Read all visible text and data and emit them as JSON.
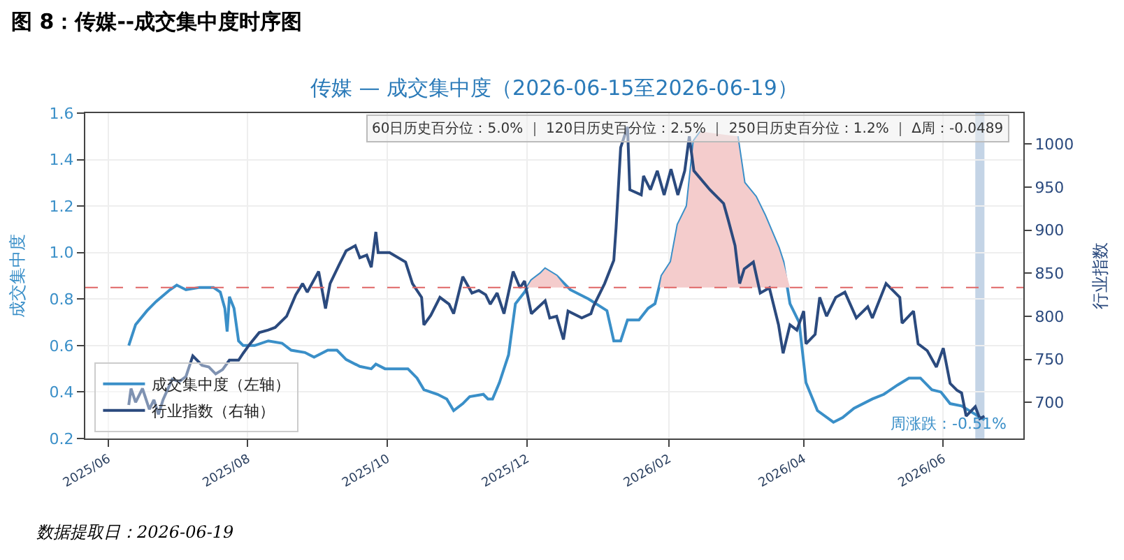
{
  "chart_data": {
    "type": "line",
    "title": "图 8：传媒--成交集中度时序图",
    "subtitle": "传媒 — 成交集中度（2026-06-15至2026-06-19）",
    "ylabel": "成交集中度",
    "y2label": "行业指数",
    "series": [
      {
        "name": "成交集中度（左轴）",
        "color": "#3a8fc8",
        "x": [
          "2025-06-10",
          "2025-06-13",
          "2025-06-18",
          "2025-06-22",
          "2025-06-28",
          "2025-07-01",
          "2025-07-05",
          "2025-07-11",
          "2025-07-17",
          "2025-07-20",
          "2025-07-22",
          "2025-07-23",
          "2025-07-24",
          "2025-07-26",
          "2025-07-28",
          "2025-07-30",
          "2025-08-04",
          "2025-08-10",
          "2025-08-16",
          "2025-08-20",
          "2025-08-26",
          "2025-08-30",
          "2025-09-05",
          "2025-09-09",
          "2025-09-13",
          "2025-09-19",
          "2025-09-24",
          "2025-09-26",
          "2025-09-30",
          "2025-10-10",
          "2025-10-14",
          "2025-10-17",
          "2025-10-23",
          "2025-10-27",
          "2025-10-30",
          "2025-11-03",
          "2025-11-06",
          "2025-11-12",
          "2025-11-14",
          "2025-11-16",
          "2025-11-19",
          "2025-11-23",
          "2025-11-26",
          "2025-11-30",
          "2025-12-03",
          "2025-12-07",
          "2025-12-09",
          "2025-12-14",
          "2025-12-20",
          "2025-12-28",
          "2026-01-05",
          "2026-01-08",
          "2026-01-11",
          "2026-01-14",
          "2026-01-19",
          "2026-01-23",
          "2026-01-26",
          "2026-01-29",
          "2026-02-02",
          "2026-02-05",
          "2026-02-09",
          "2026-02-12",
          "2026-02-15",
          "2026-02-23",
          "2026-03-03",
          "2026-03-06",
          "2026-03-11",
          "2026-03-15",
          "2026-03-21",
          "2026-03-23",
          "2026-03-26",
          "2026-03-30",
          "2026-04-02",
          "2026-04-07",
          "2026-04-14",
          "2026-04-18",
          "2026-04-23",
          "2026-05-01",
          "2026-05-06",
          "2026-05-12",
          "2026-05-17",
          "2026-05-22",
          "2026-05-27",
          "2026-05-31",
          "2026-06-04",
          "2026-06-09",
          "2026-06-14",
          "2026-06-19"
        ],
        "values": [
          0.6,
          0.69,
          0.75,
          0.79,
          0.84,
          0.86,
          0.84,
          0.85,
          0.85,
          0.83,
          0.76,
          0.66,
          0.81,
          0.76,
          0.62,
          0.6,
          0.6,
          0.62,
          0.61,
          0.58,
          0.57,
          0.55,
          0.58,
          0.58,
          0.54,
          0.51,
          0.5,
          0.52,
          0.5,
          0.5,
          0.46,
          0.41,
          0.39,
          0.37,
          0.32,
          0.35,
          0.38,
          0.39,
          0.37,
          0.37,
          0.44,
          0.56,
          0.78,
          0.83,
          0.88,
          0.91,
          0.93,
          0.9,
          0.84,
          0.8,
          0.75,
          0.62,
          0.62,
          0.71,
          0.71,
          0.76,
          0.78,
          0.9,
          0.96,
          1.12,
          1.2,
          1.48,
          1.52,
          null,
          1.5,
          1.3,
          1.24,
          1.16,
          1.02,
          0.96,
          0.78,
          0.7,
          0.44,
          0.32,
          0.27,
          0.29,
          0.33,
          0.37,
          0.39,
          0.43,
          0.46,
          0.46,
          0.41,
          0.4,
          0.35,
          0.34,
          0.31,
          0.28
        ]
      },
      {
        "name": "行业指数（右轴）",
        "color": "#2b4a7e",
        "axis": "y2",
        "x": [
          "2025-06-10",
          "2025-06-11",
          "2025-06-13",
          "2025-06-16",
          "2025-06-19",
          "2025-06-21",
          "2025-06-23",
          "2025-06-25",
          "2025-06-29",
          "2025-07-02",
          "2025-07-05",
          "2025-07-08",
          "2025-07-12",
          "2025-07-15",
          "2025-07-18",
          "2025-07-21",
          "2025-07-24",
          "2025-07-28",
          "2025-07-30",
          "2025-08-02",
          "2025-08-06",
          "2025-08-10",
          "2025-08-13",
          "2025-08-18",
          "2025-08-22",
          "2025-08-25",
          "2025-08-27",
          "2025-09-01",
          "2025-09-04",
          "2025-09-06",
          "2025-09-10",
          "2025-09-13",
          "2025-09-17",
          "2025-09-19",
          "2025-09-22",
          "2025-09-24",
          "2025-09-26",
          "2025-09-27",
          "2025-10-02",
          "2025-10-09",
          "2025-10-12",
          "2025-10-16",
          "2025-10-17",
          "2025-10-20",
          "2025-10-24",
          "2025-10-28",
          "2025-10-30",
          "2025-11-03",
          "2025-11-07",
          "2025-11-10",
          "2025-11-13",
          "2025-11-15",
          "2025-11-18",
          "2025-11-21",
          "2025-11-25",
          "2025-11-28",
          "2025-11-30",
          "2025-12-03",
          "2025-12-09",
          "2025-12-11",
          "2025-12-14",
          "2025-12-17",
          "2025-12-19",
          "2025-12-25",
          "2025-12-29",
          "2025-12-30",
          "2026-01-04",
          "2026-01-08",
          "2026-01-09",
          "2026-01-11",
          "2026-01-14",
          "2026-01-15",
          "2026-01-20",
          "2026-01-21",
          "2026-01-24",
          "2026-01-27",
          "2026-01-30",
          "2026-02-02",
          "2026-02-05",
          "2026-02-08",
          "2026-02-10",
          "2026-02-12",
          "2026-02-19",
          "2026-02-25",
          "2026-02-27",
          "2026-03-02",
          "2026-03-04",
          "2026-03-06",
          "2026-03-10",
          "2026-03-13",
          "2026-03-17",
          "2026-03-21",
          "2026-03-23",
          "2026-03-26",
          "2026-03-29",
          "2026-04-01",
          "2026-04-02",
          "2026-04-06",
          "2026-04-08",
          "2026-04-11",
          "2026-04-15",
          "2026-04-19",
          "2026-04-24",
          "2026-04-29",
          "2026-05-01",
          "2026-05-07",
          "2026-05-13",
          "2026-05-14",
          "2026-05-19",
          "2026-05-21",
          "2026-05-25",
          "2026-05-29",
          "2026-06-01",
          "2026-06-04",
          "2026-06-07",
          "2026-06-09",
          "2026-06-11",
          "2026-06-15",
          "2026-06-17",
          "2026-06-19"
        ],
        "values": [
          697,
          716,
          700,
          716,
          692,
          703,
          686,
          703,
          727,
          724,
          730,
          754,
          743,
          741,
          733,
          738,
          749,
          749,
          757,
          768,
          781,
          784,
          787,
          800,
          825,
          838,
          828,
          852,
          809,
          838,
          860,
          876,
          882,
          868,
          871,
          857,
          898,
          874,
          874,
          863,
          838,
          822,
          790,
          801,
          822,
          814,
          803,
          846,
          827,
          830,
          825,
          814,
          827,
          803,
          852,
          833,
          841,
          803,
          818,
          798,
          800,
          773,
          806,
          798,
          803,
          811,
          838,
          865,
          903,
          996,
          1020,
          947,
          941,
          963,
          947,
          969,
          941,
          971,
          941,
          969,
          1009,
          969,
          947,
          931,
          912,
          882,
          838,
          855,
          863,
          827,
          833,
          790,
          757,
          790,
          784,
          806,
          768,
          779,
          822,
          800,
          822,
          828,
          798,
          811,
          798,
          838,
          822,
          792,
          806,
          768,
          760,
          741,
          763,
          722,
          714,
          711,
          684,
          695,
          681,
          684
        ]
      },
      {
        "type": "area",
        "color": "#f4cccc",
        "x": [
          "2025-12-01",
          "2025-12-03",
          "2025-12-07",
          "2025-12-09",
          "2025-12-14",
          "2025-12-18",
          "2025-12-25",
          "2026-01-28",
          "2026-01-29",
          "2026-02-02",
          "2026-02-05",
          "2026-02-09",
          "2026-02-12",
          "2026-02-15",
          "2026-03-03",
          "2026-03-06",
          "2026-03-11",
          "2026-03-15",
          "2026-03-21",
          "2026-03-23",
          "2026-03-26"
        ],
        "values": [
          0.85,
          0.88,
          0.91,
          0.93,
          0.9,
          0.85,
          null,
          0.85,
          0.9,
          0.96,
          1.12,
          1.2,
          1.48,
          1.52,
          1.5,
          1.3,
          1.24,
          1.16,
          1.02,
          0.96,
          0.85
        ]
      }
    ],
    "xlim": [
      "2025-05-22",
      "2026-07-06"
    ],
    "xticks": [
      {
        "value": "2025-06",
        "label": "2025/06"
      },
      {
        "value": "2025-08",
        "label": "2025/08"
      },
      {
        "value": "2025-10",
        "label": "2025/10"
      },
      {
        "value": "2025-12",
        "label": "2025/12"
      },
      {
        "value": "2026-02",
        "label": "2026/02"
      },
      {
        "value": "2026-04",
        "label": "2026/04"
      },
      {
        "value": "2026-06",
        "label": "2026/06"
      }
    ],
    "ylim": [
      0.2,
      1.6
    ],
    "yticks": [
      {
        "value": 0.2,
        "label": "0.2"
      },
      {
        "value": 0.4,
        "label": "0.4"
      },
      {
        "value": 0.6,
        "label": "0.6"
      },
      {
        "value": 0.8,
        "label": "0.8"
      },
      {
        "value": 1.0,
        "label": "1.0"
      },
      {
        "value": 1.2,
        "label": "1.2"
      },
      {
        "value": 1.4,
        "label": "1.4"
      },
      {
        "value": 1.6,
        "label": "1.6"
      }
    ],
    "y2lim": [
      658,
      1036
    ],
    "y2ticks": [
      700,
      750,
      800,
      850,
      900,
      950,
      1000
    ],
    "ref_lines": [
      {
        "axis": "y",
        "value": 0.85,
        "color": "#e06666",
        "line_style": "dashed"
      }
    ],
    "bands": [
      {
        "axis": "x",
        "from": "2026-06-15",
        "to": "2026-06-19",
        "color": "#9db8d6"
      }
    ],
    "annotations": [
      "60日历史百分位：5.0% ｜ 120日历史百分位：2.5% ｜ 250日历史百分位：1.2% ｜ Δ周：-0.0489",
      "周涨跌：-0.51%",
      "数据提取日：2026-06-19"
    ],
    "grid": true,
    "legend": "bottom left",
    "line_style": "solid"
  }
}
